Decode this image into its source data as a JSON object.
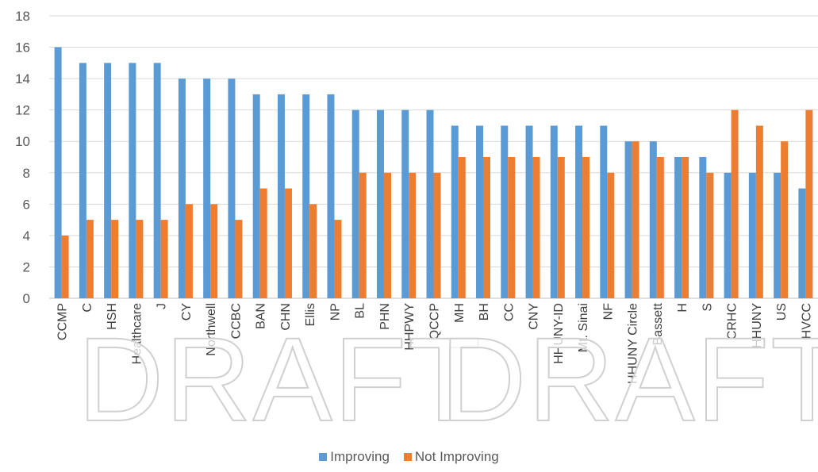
{
  "chart_data": {
    "type": "bar",
    "title": "",
    "xlabel": "",
    "ylabel": "",
    "ylim": [
      0,
      18
    ],
    "yticks": [
      0,
      2,
      4,
      6,
      8,
      10,
      12,
      14,
      16,
      18
    ],
    "grid": true,
    "legend_position": "bottom",
    "categories": [
      "CCMP",
      "C",
      "HSH",
      "Healthcare",
      "J",
      "CY",
      "Northwell",
      "CCBC",
      "BAN",
      "CHN",
      "Ellis",
      "NP",
      "BL",
      "PHN",
      "HHPWY",
      "QCCP",
      "MH",
      "BH",
      "CC",
      "CNY",
      "HHUNY-ID",
      "Mt. Sinai",
      "NF",
      "HHUNY Circle",
      "Bassett",
      "H",
      "S",
      "CRHC",
      "HHUNY",
      "US",
      "HVCC"
    ],
    "series": [
      {
        "name": "Improving",
        "color": "#5b9bd5",
        "values": [
          16,
          15,
          15,
          15,
          15,
          14,
          14,
          14,
          13,
          13,
          13,
          13,
          12,
          12,
          12,
          12,
          11,
          11,
          11,
          11,
          11,
          11,
          11,
          10,
          10,
          9,
          9,
          8,
          8,
          8,
          7
        ]
      },
      {
        "name": "Not Improving",
        "color": "#ed7d31",
        "values": [
          4,
          5,
          5,
          5,
          5,
          6,
          6,
          5,
          7,
          7,
          6,
          5,
          8,
          8,
          8,
          8,
          9,
          9,
          9,
          9,
          9,
          9,
          8,
          10,
          9,
          9,
          8,
          12,
          11,
          10,
          12
        ]
      }
    ]
  },
  "watermark": "DRAFT DRAFT"
}
